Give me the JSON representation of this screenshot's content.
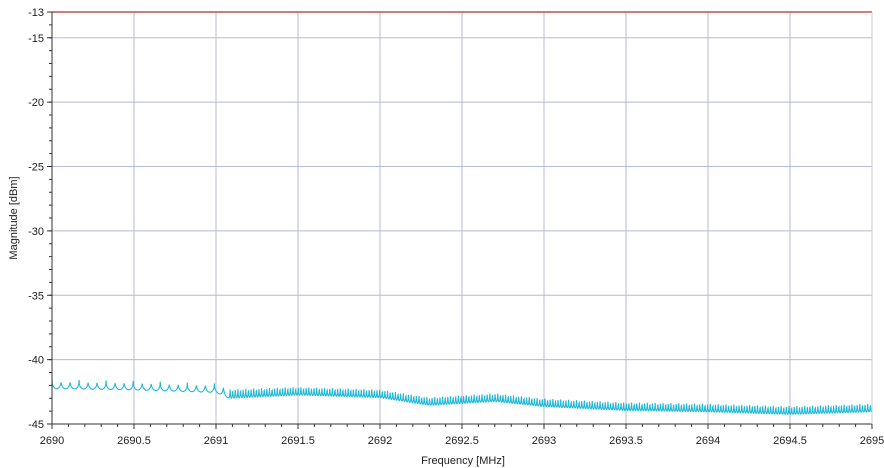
{
  "chart_data": {
    "type": "line",
    "title": "",
    "xlabel": "Frequency [MHz]",
    "ylabel": "Magnitude [dBm]",
    "xlim": [
      2690,
      2695
    ],
    "ylim": [
      -45,
      -13
    ],
    "x_ticks": [
      2690,
      2690.5,
      2691,
      2691.5,
      2692,
      2692.5,
      2693,
      2693.5,
      2694,
      2694.5,
      2695
    ],
    "x_tick_labels": [
      "2690",
      "2690.5",
      "2691",
      "2691.5",
      "2692",
      "2692.5",
      "2693",
      "2693.5",
      "2694",
      "2694.5",
      "2695"
    ],
    "y_ticks": [
      -13,
      -15,
      -20,
      -25,
      -30,
      -35,
      -40,
      -45
    ],
    "y_tick_labels": [
      "-13",
      "-15",
      "-20",
      "-25",
      "-30",
      "-35",
      "-40",
      "-45"
    ],
    "grid": true,
    "legend": "none",
    "colors": {
      "trace": "#1fb8d6",
      "limit_line": "#c0504d",
      "grid": "#b8b8d8",
      "axis": "#333333"
    },
    "series": [
      {
        "role": "limit",
        "values_y": -13,
        "x": [
          2690,
          2695
        ]
      },
      {
        "role": "trace",
        "envelope": {
          "x": [
            2690,
            2690.5,
            2691,
            2691.08,
            2691.5,
            2692,
            2692.3,
            2692.7,
            2693,
            2693.5,
            2694,
            2694.5,
            2695
          ],
          "y_mean": [
            -41.9,
            -42.0,
            -42.2,
            -42.5,
            -42.3,
            -42.5,
            -43.1,
            -42.8,
            -43.2,
            -43.5,
            -43.6,
            -43.8,
            -43.6
          ],
          "ripple_db": [
            0.7,
            0.7,
            0.7,
            1.0,
            0.9,
            0.9,
            0.9,
            0.9,
            0.9,
            0.9,
            0.9,
            0.9,
            0.9
          ],
          "ripple_period_mhz": [
            0.055,
            0.055,
            0.055,
            0.016,
            0.016,
            0.016,
            0.016,
            0.016,
            0.016,
            0.016,
            0.016,
            0.016,
            0.016
          ]
        }
      }
    ]
  }
}
